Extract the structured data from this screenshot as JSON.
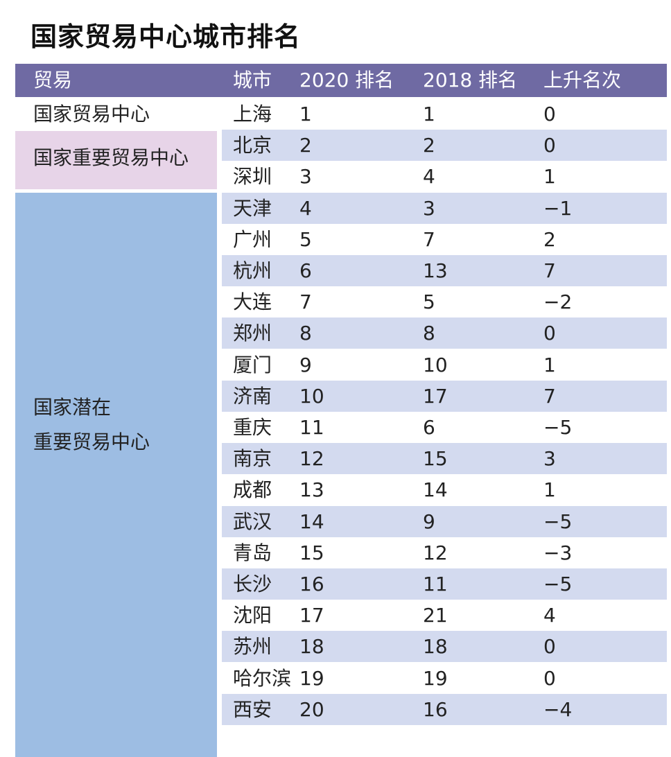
{
  "title": "国家贸易中心城市排名",
  "colors": {
    "header": "#6f6aa3",
    "pink": "#e7d4e8",
    "blue": "#9dbde3",
    "stripe": "#d3daef"
  },
  "header": [
    "贸易",
    "城市",
    "2020 排名",
    "2018 排名",
    "上升名次"
  ],
  "categories": [
    {
      "label": "国家贸易中心"
    },
    {
      "label": "国家重要贸易中心"
    },
    {
      "line1": "国家潜在",
      "line2": "重要贸易中心"
    }
  ],
  "rows": [
    {
      "city": "上海",
      "r2020": "1",
      "r2018": "1",
      "change": "0"
    },
    {
      "city": "北京",
      "r2020": "2",
      "r2018": "2",
      "change": "0"
    },
    {
      "city": "深圳",
      "r2020": "3",
      "r2018": "4",
      "change": "1"
    },
    {
      "city": "天津",
      "r2020": "4",
      "r2018": "3",
      "change": "−1"
    },
    {
      "city": "广州",
      "r2020": "5",
      "r2018": "7",
      "change": "2"
    },
    {
      "city": "杭州",
      "r2020": "6",
      "r2018": "13",
      "change": "7"
    },
    {
      "city": "大连",
      "r2020": "7",
      "r2018": "5",
      "change": "−2"
    },
    {
      "city": "郑州",
      "r2020": "8",
      "r2018": "8",
      "change": "0"
    },
    {
      "city": "厦门",
      "r2020": "9",
      "r2018": "10",
      "change": "1"
    },
    {
      "city": "济南",
      "r2020": "10",
      "r2018": "17",
      "change": "7"
    },
    {
      "city": "重庆",
      "r2020": "11",
      "r2018": "6",
      "change": "−5"
    },
    {
      "city": "南京",
      "r2020": "12",
      "r2018": "15",
      "change": "3"
    },
    {
      "city": "成都",
      "r2020": "13",
      "r2018": "14",
      "change": "1"
    },
    {
      "city": "武汉",
      "r2020": "14",
      "r2018": "9",
      "change": "−5"
    },
    {
      "city": "青岛",
      "r2020": "15",
      "r2018": "12",
      "change": "−3"
    },
    {
      "city": "长沙",
      "r2020": "16",
      "r2018": "11",
      "change": "−5"
    },
    {
      "city": "沈阳",
      "r2020": "17",
      "r2018": "21",
      "change": "4"
    },
    {
      "city": "苏州",
      "r2020": "18",
      "r2018": "18",
      "change": "0"
    },
    {
      "city": "哈尔滨",
      "r2020": "19",
      "r2018": "19",
      "change": "0"
    },
    {
      "city": "西安",
      "r2020": "20",
      "r2018": "16",
      "change": "−4"
    }
  ]
}
